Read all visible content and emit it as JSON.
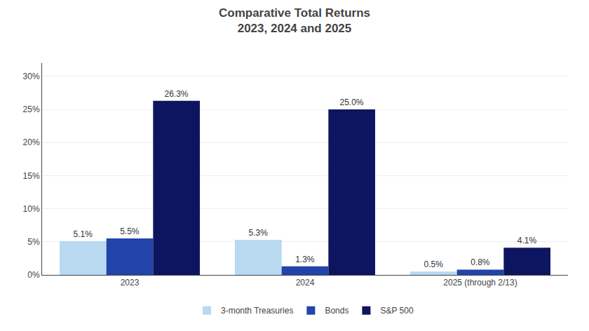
{
  "chart_data": {
    "type": "bar",
    "title": "Comparative Total Returns",
    "subtitle": "2023, 2024 and 2025",
    "categories": [
      "2023",
      "2024",
      "2025 (through 2/13)"
    ],
    "series": [
      {
        "name": "3-month Treasuries",
        "color": "#b8d9f0",
        "values": [
          5.1,
          5.3,
          0.5
        ],
        "value_labels": [
          "5.1%",
          "5.3%",
          "0.5%"
        ]
      },
      {
        "name": "Bonds",
        "color": "#2244aa",
        "values": [
          5.5,
          1.3,
          0.8
        ],
        "value_labels": [
          "5.5%",
          "1.3%",
          "0.8%"
        ]
      },
      {
        "name": "S&P 500",
        "color": "#0d1560",
        "values": [
          26.3,
          25.0,
          4.1
        ],
        "value_labels": [
          "26.3%",
          "25.0%",
          "4.1%"
        ]
      }
    ],
    "ylim": [
      0,
      32
    ],
    "yticks": [
      {
        "value": 0,
        "label": "0%"
      },
      {
        "value": 5,
        "label": "5%"
      },
      {
        "value": 10,
        "label": "10%"
      },
      {
        "value": 15,
        "label": "15%"
      },
      {
        "value": 20,
        "label": "20%"
      },
      {
        "value": 25,
        "label": "25%"
      },
      {
        "value": 30,
        "label": "30%"
      }
    ],
    "grid": true,
    "legend": "bottom",
    "data_labels": true
  }
}
